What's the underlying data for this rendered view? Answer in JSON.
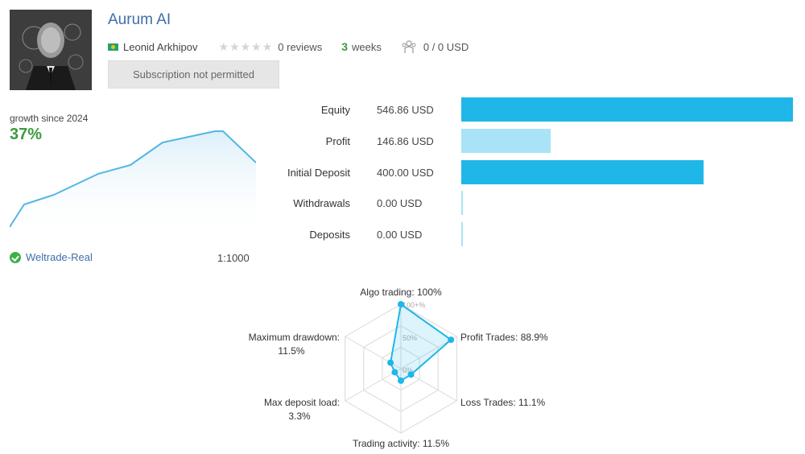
{
  "profile": {
    "title": "Aurum AI",
    "author": "Leonid Arkhipov",
    "reviews": "0 reviews",
    "weeks_number": "3",
    "weeks_label": "weeks",
    "subscribers": "0 / 0 USD",
    "subscription_button": "Subscription not permitted",
    "rating_stars": 0
  },
  "growth": {
    "label": "growth since 2024",
    "value": "37%"
  },
  "account": {
    "broker": "Weltrade-Real",
    "leverage": "1:1000"
  },
  "stats": [
    {
      "label": "Equity",
      "value": "546.86 USD",
      "amount": 546.86,
      "color": "#1fb6e8"
    },
    {
      "label": "Profit",
      "value": "146.86 USD",
      "amount": 146.86,
      "color": "#a9e3f7"
    },
    {
      "label": "Initial Deposit",
      "value": "400.00 USD",
      "amount": 400.0,
      "color": "#1fb6e8"
    },
    {
      "label": "Withdrawals",
      "value": "0.00 USD",
      "amount": 0,
      "color": "#a9e3f7"
    },
    {
      "label": "Deposits",
      "value": "0.00 USD",
      "amount": 0,
      "color": "#a9e3f7"
    }
  ],
  "radar": {
    "axes": [
      {
        "label": "Algo trading: 100%",
        "value": 100
      },
      {
        "label": "Profit Trades: 88.9%",
        "value": 88.9
      },
      {
        "label": "Loss Trades: 11.1%",
        "value": 11.1
      },
      {
        "label": "Trading activity: 11.5%",
        "value": 11.5
      },
      {
        "label_line1": "Max deposit load:",
        "label_line2": "3.3%",
        "value": 3.3
      },
      {
        "label_line1": "Maximum drawdown:",
        "label_line2": "11.5%",
        "value": 11.5
      }
    ],
    "scale_labels": [
      "100+%",
      "50%",
      "0%"
    ],
    "color": "#1fb6e8"
  },
  "colors": {
    "title": "#3f6fa8",
    "growth": "#3d9a3d",
    "line": "#55b6e4"
  }
}
